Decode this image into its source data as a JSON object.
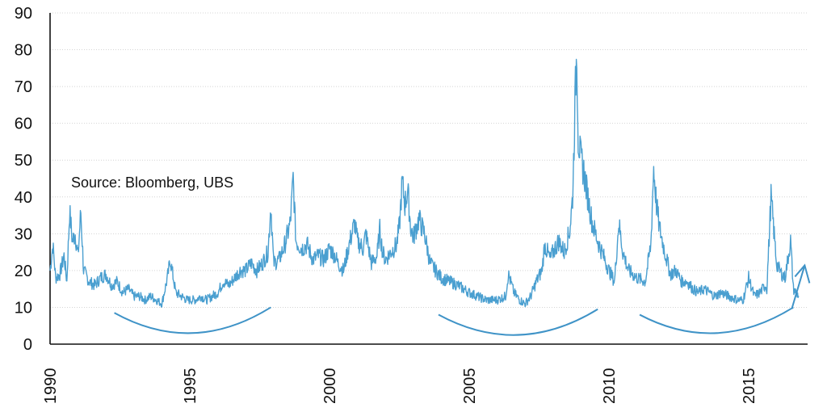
{
  "chart_data": {
    "type": "line",
    "title": "",
    "xlabel": "",
    "ylabel": "",
    "annotation": "Source:  Bloomberg, UBS",
    "ylim": [
      0,
      90
    ],
    "xlim": [
      1990,
      2016.9
    ],
    "y_ticks": [
      "0",
      "10",
      "20",
      "30",
      "40",
      "50",
      "60",
      "70",
      "80",
      "90"
    ],
    "x_ticks": [
      "1990",
      "1995",
      "2000",
      "2005",
      "2010",
      "2015"
    ],
    "grid": true,
    "color": "#4a9fd0",
    "trend_arc_color": "#3f93c7",
    "series": [
      {
        "x": [
          1990.0,
          1990.1,
          1990.2,
          1990.35,
          1990.5,
          1990.6,
          1990.7,
          1990.8,
          1990.9,
          1991.0,
          1991.1,
          1991.2,
          1991.4,
          1991.6,
          1991.8,
          1992.0,
          1992.2,
          1992.4,
          1992.6,
          1992.8,
          1993.0,
          1993.2,
          1993.4,
          1993.6,
          1993.8,
          1994.0,
          1994.2,
          1994.3,
          1994.5,
          1994.7,
          1994.9,
          1995.0,
          1995.2,
          1995.4,
          1995.6,
          1995.8,
          1996.0,
          1996.2,
          1996.4,
          1996.6,
          1996.8,
          1997.0,
          1997.2,
          1997.4,
          1997.6,
          1997.8,
          1997.9,
          1998.0,
          1998.2,
          1998.4,
          1998.6,
          1998.7,
          1998.8,
          1999.0,
          1999.2,
          1999.4,
          1999.6,
          1999.8,
          2000.0,
          2000.2,
          2000.3,
          2000.5,
          2000.7,
          2000.9,
          2001.0,
          2001.2,
          2001.3,
          2001.5,
          2001.7,
          2001.8,
          2001.9,
          2002.0,
          2002.2,
          2002.4,
          2002.5,
          2002.6,
          2002.7,
          2002.8,
          2002.9,
          2003.0,
          2003.2,
          2003.4,
          2003.6,
          2003.8,
          2004.0,
          2004.3,
          2004.6,
          2005.0,
          2005.3,
          2005.6,
          2006.0,
          2006.3,
          2006.4,
          2006.6,
          2006.8,
          2007.0,
          2007.2,
          2007.4,
          2007.6,
          2007.7,
          2007.9,
          2008.0,
          2008.2,
          2008.4,
          2008.6,
          2008.7,
          2008.8,
          2008.85,
          2008.9,
          2009.0,
          2009.1,
          2009.2,
          2009.4,
          2009.6,
          2009.8,
          2010.0,
          2010.2,
          2010.35,
          2010.5,
          2010.7,
          2011.0,
          2011.3,
          2011.5,
          2011.6,
          2011.7,
          2011.8,
          2012.0,
          2012.2,
          2012.4,
          2012.6,
          2012.8,
          2013.0,
          2013.2,
          2013.4,
          2013.6,
          2013.8,
          2014.0,
          2014.3,
          2014.6,
          2014.8,
          2015.0,
          2015.2,
          2015.4,
          2015.6,
          2015.65,
          2015.8,
          2016.0,
          2016.1,
          2016.3,
          2016.5,
          2016.6,
          2016.8
        ],
        "y": [
          20,
          27,
          18,
          19,
          24,
          17,
          36,
          28,
          30,
          24,
          36,
          20,
          17,
          16,
          18,
          19,
          16,
          17,
          14,
          15,
          13,
          13,
          12,
          13,
          12,
          11,
          18,
          23,
          14,
          13,
          12,
          12,
          12,
          13,
          12,
          13,
          14,
          17,
          16,
          18,
          20,
          20,
          22,
          20,
          22,
          25,
          38,
          22,
          23,
          27,
          33,
          45,
          28,
          26,
          27,
          23,
          24,
          23,
          26,
          24,
          22,
          20,
          27,
          33,
          28,
          26,
          30,
          22,
          24,
          31,
          25,
          23,
          25,
          27,
          32,
          44,
          38,
          42,
          32,
          29,
          34,
          30,
          22,
          20,
          18,
          17,
          16,
          14,
          13,
          12,
          12,
          13,
          19,
          14,
          12,
          11,
          13,
          17,
          20,
          27,
          23,
          25,
          28,
          25,
          31,
          40,
          69,
          80,
          56,
          50,
          47,
          42,
          33,
          28,
          24,
          20,
          17,
          33,
          25,
          20,
          18,
          17,
          27,
          48,
          38,
          32,
          25,
          19,
          20,
          17,
          17,
          15,
          14,
          15,
          14,
          13,
          14,
          13,
          12,
          12,
          18,
          13,
          14,
          16,
          15,
          40,
          22,
          20,
          18,
          28,
          15,
          13
        ]
      }
    ],
    "trend_arcs": [
      {
        "x_start": 1992.3,
        "x_end": 1997.9,
        "y_start": 8.5,
        "y_mid": 3.0,
        "y_end": 10.0
      },
      {
        "x_start": 2003.9,
        "x_end": 2009.6,
        "y_start": 8.0,
        "y_mid": 2.5,
        "y_end": 9.5
      },
      {
        "x_start": 2011.1,
        "x_end": 2016.6,
        "y_start": 8.0,
        "y_mid": 3.0,
        "y_end": 10.0
      }
    ]
  }
}
